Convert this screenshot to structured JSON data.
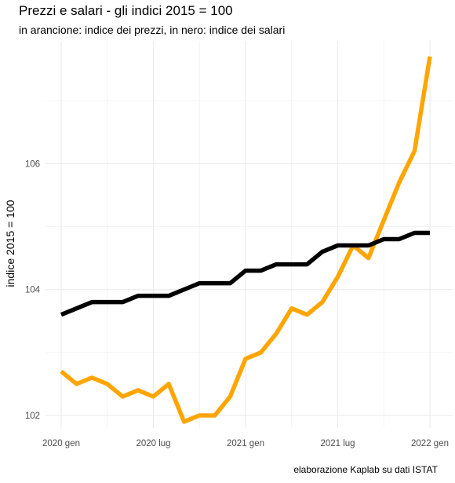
{
  "chart_data": {
    "type": "line",
    "title": "Prezzi e salari - gli indici 2015 = 100",
    "subtitle": "in arancione: indice dei prezzi, in nero: indice dei salari",
    "caption": "elaborazione Kaplab su dati ISTAT",
    "xlabel": "",
    "ylabel": "indice 2015 = 100",
    "x": [
      "2020-01",
      "2020-02",
      "2020-03",
      "2020-04",
      "2020-05",
      "2020-06",
      "2020-07",
      "2020-08",
      "2020-09",
      "2020-10",
      "2020-11",
      "2020-12",
      "2021-01",
      "2021-02",
      "2021-03",
      "2021-04",
      "2021-05",
      "2021-06",
      "2021-07",
      "2021-08",
      "2021-09",
      "2021-10",
      "2021-11",
      "2021-12",
      "2022-01"
    ],
    "x_ticks": [
      {
        "value": "2020-01",
        "label": "2020 gen"
      },
      {
        "value": "2020-07",
        "label": "2020 lug"
      },
      {
        "value": "2021-01",
        "label": "2021 gen"
      },
      {
        "value": "2021-07",
        "label": "2021 lug"
      },
      {
        "value": "2022-01",
        "label": "2022 gen"
      }
    ],
    "y_ticks": [
      102,
      104,
      106
    ],
    "ylim": [
      101.8,
      107.95
    ],
    "grid": true,
    "series": [
      {
        "color": "#ffa500",
        "values": [
          102.7,
          102.5,
          102.6,
          102.5,
          102.3,
          102.4,
          102.3,
          102.5,
          101.9,
          102.0,
          102.0,
          102.3,
          102.9,
          103.0,
          103.3,
          103.7,
          103.6,
          103.8,
          104.2,
          104.7,
          104.5,
          105.1,
          105.7,
          106.2,
          107.7
        ]
      },
      {
        "color": "#000000",
        "values": [
          103.6,
          103.7,
          103.8,
          103.8,
          103.8,
          103.9,
          103.9,
          103.9,
          104.0,
          104.1,
          104.1,
          104.1,
          104.3,
          104.3,
          104.4,
          104.4,
          104.4,
          104.6,
          104.7,
          104.7,
          104.7,
          104.8,
          104.8,
          104.9,
          104.9
        ]
      }
    ]
  }
}
